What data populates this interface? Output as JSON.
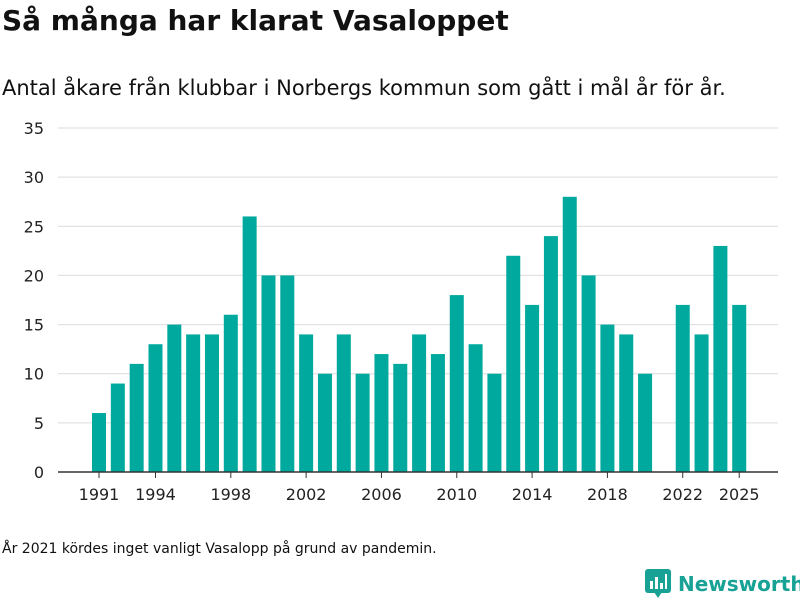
{
  "title": "Så många har klarat Vasaloppet",
  "subtitle": "Antal åkare från klubbar i Norbergs kommun som gått i mål år för år.",
  "note": "År 2021 kördes inget vanligt Vasalopp på grund av pandemin.",
  "brand": {
    "name": "Newsworthy",
    "color": "#17a295",
    "icon": "newsworthy-logo-icon"
  },
  "chart_data": {
    "type": "bar",
    "x": [
      1991,
      1992,
      1993,
      1994,
      1995,
      1996,
      1997,
      1998,
      1999,
      2000,
      2001,
      2002,
      2003,
      2004,
      2005,
      2006,
      2007,
      2008,
      2009,
      2010,
      2011,
      2012,
      2013,
      2014,
      2015,
      2016,
      2017,
      2018,
      2019,
      2020,
      2021,
      2022,
      2023,
      2024,
      2025
    ],
    "values": [
      6,
      9,
      11,
      13,
      15,
      14,
      14,
      16,
      26,
      20,
      20,
      14,
      10,
      14,
      10,
      12,
      11,
      14,
      12,
      18,
      13,
      10,
      22,
      17,
      24,
      28,
      20,
      15,
      14,
      10,
      null,
      17,
      14,
      23,
      17
    ],
    "x_ticks": [
      "1991",
      "1994",
      "1998",
      "2002",
      "2006",
      "2010",
      "2014",
      "2018",
      "2022",
      "2025"
    ],
    "y_ticks": [
      "0",
      "5",
      "10",
      "15",
      "20",
      "25",
      "30",
      "35"
    ],
    "ylim": [
      0,
      35
    ],
    "bar_color": "#00a99d",
    "grid": true,
    "legend": false
  }
}
